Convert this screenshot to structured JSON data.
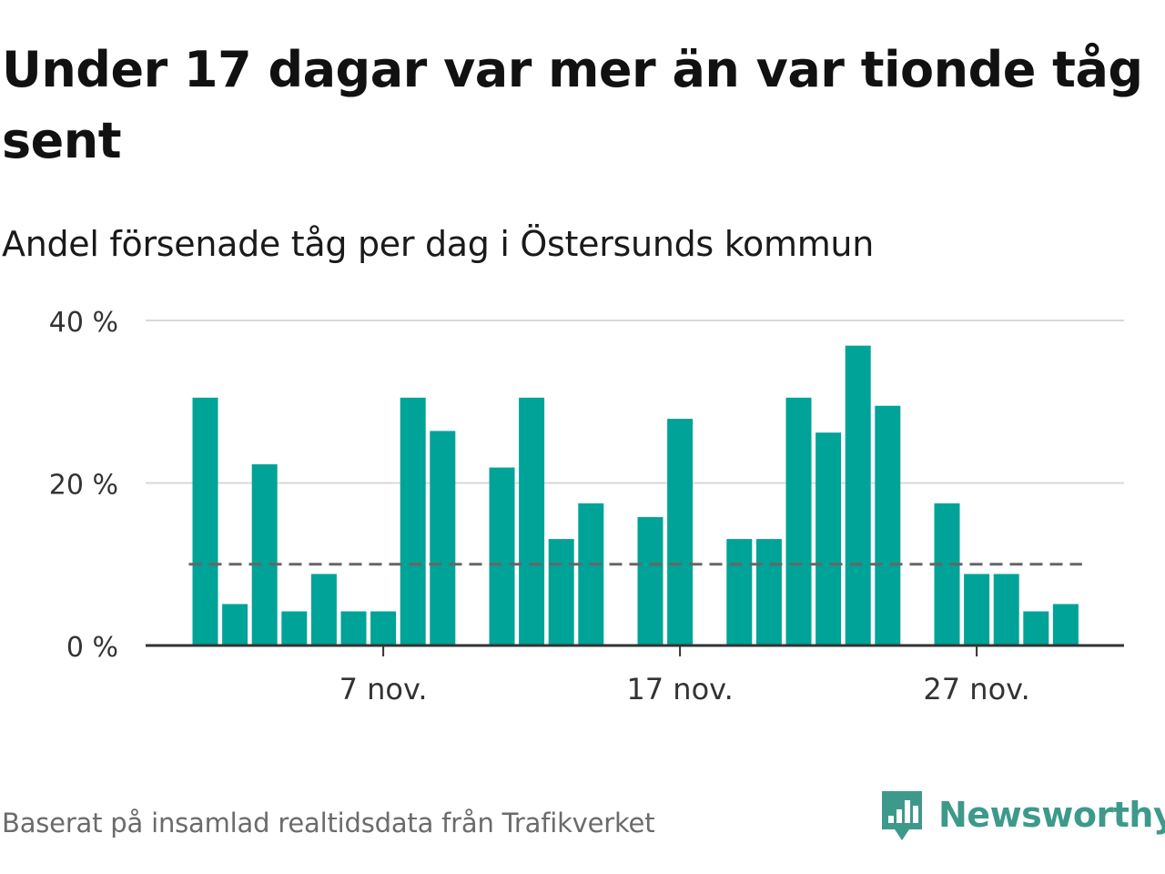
{
  "title": "Under 17 dagar var mer än var tionde tåg sent",
  "subtitle": "Andel försenade tåg per dag i Östersunds kommun",
  "source": "Baserat på insamlad realtidsdata från Trafikverket",
  "brand": {
    "name": "Newsworthy",
    "logo_icon": "bar-chart-speech-bubble-icon",
    "color": "#3d9a8b"
  },
  "colors": {
    "bar": "#00a398",
    "grid": "#d9d9d9",
    "axis": "#333333",
    "reference_line": "#666666"
  },
  "chart_data": {
    "type": "bar",
    "x_start_day": 1,
    "x_end_day": 30,
    "x_month_label": "nov.",
    "days": [
      1,
      2,
      3,
      4,
      5,
      6,
      7,
      8,
      9,
      10,
      11,
      12,
      13,
      14,
      15,
      16,
      17,
      18,
      19,
      20,
      21,
      22,
      23,
      24,
      25,
      26,
      27,
      28,
      29,
      30
    ],
    "values": [
      30.5,
      5.1,
      22.3,
      4.2,
      8.8,
      4.2,
      4.2,
      30.5,
      26.4,
      null,
      21.9,
      30.5,
      13.1,
      17.5,
      null,
      15.8,
      27.9,
      null,
      13.1,
      13.1,
      30.5,
      26.2,
      36.9,
      29.5,
      null,
      17.5,
      8.8,
      8.8,
      4.2,
      5.1
    ],
    "reference_line": 10,
    "ylim": [
      0,
      40
    ],
    "y_ticks": [
      0,
      20,
      40
    ],
    "y_tick_labels": [
      "0 %",
      "20 %",
      "40 %"
    ],
    "x_ticks": [
      7,
      17,
      27
    ],
    "x_tick_labels": [
      "7 nov.",
      "17 nov.",
      "27 nov."
    ],
    "grid": true
  }
}
